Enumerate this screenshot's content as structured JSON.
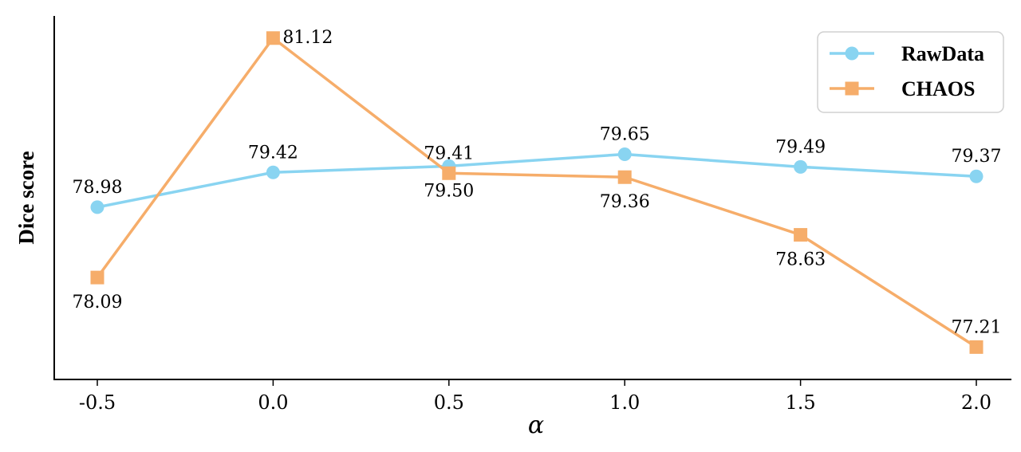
{
  "chart_data": {
    "type": "line",
    "title": "",
    "xlabel": "α",
    "ylabel": "Dice score",
    "x": [
      -0.5,
      0.0,
      0.5,
      1.0,
      1.5,
      2.0
    ],
    "x_tick_labels": [
      "-0.5",
      "0.0",
      "0.5",
      "1.0",
      "1.5",
      "2.0"
    ],
    "ylim": [
      76.8,
      81.4
    ],
    "grid": false,
    "legend_position": "top-right",
    "series": [
      {
        "name": "RawData",
        "color": "#89d4f1",
        "marker": "circle",
        "values": [
          78.98,
          79.42,
          79.5,
          79.65,
          79.49,
          79.37
        ],
        "labels": [
          "78.98",
          "79.42",
          "79.50",
          "79.65",
          "79.49",
          "79.37"
        ]
      },
      {
        "name": "CHAOS",
        "color": "#f6ad6a",
        "marker": "square",
        "values": [
          78.09,
          81.12,
          79.41,
          79.36,
          78.63,
          77.21
        ],
        "labels": [
          "78.09",
          "81.12",
          "79.41",
          "79.36",
          "78.63",
          "77.21"
        ]
      }
    ]
  }
}
